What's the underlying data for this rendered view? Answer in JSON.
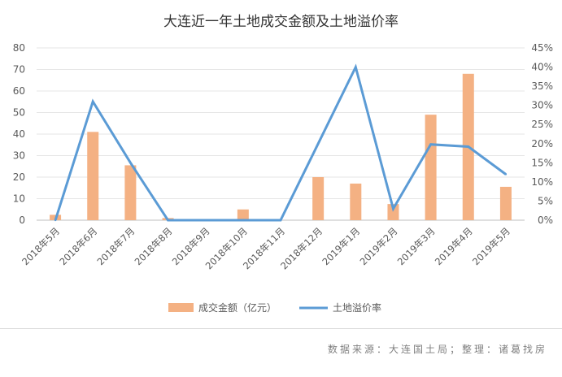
{
  "chart_data": {
    "type": "bar",
    "title": "大连近一年土地成交金额及土地溢价率",
    "categories": [
      "2018年5月",
      "2018年6月",
      "2018年7月",
      "2018年8月",
      "2018年9月",
      "2018年10月",
      "2018年11月",
      "2018年12月",
      "2019年1月",
      "2019年2月",
      "2019年3月",
      "2019年4月",
      "2019年5月"
    ],
    "y_left": {
      "ylim": [
        0,
        80
      ],
      "ticks": [
        "0",
        "10",
        "20",
        "30",
        "40",
        "50",
        "60",
        "70",
        "80"
      ]
    },
    "y_right": {
      "ylim": [
        0,
        45
      ],
      "ticks": [
        "0%",
        "5%",
        "10%",
        "15%",
        "20%",
        "25%",
        "30%",
        "35%",
        "40%",
        "45%"
      ]
    },
    "series": [
      {
        "name": "成交金额（亿元）",
        "type": "bar",
        "axis": "left",
        "color": "#F4B183",
        "values": [
          2.5,
          41,
          25.5,
          1,
          0,
          5,
          0,
          20,
          17,
          7.5,
          49,
          68,
          15.5
        ]
      },
      {
        "name": "土地溢价率",
        "type": "line",
        "axis": "right",
        "color": "#5B9BD5",
        "values": [
          0,
          31,
          15,
          0,
          0,
          0,
          0,
          20,
          40,
          3,
          19.8,
          19.2,
          12
        ]
      }
    ],
    "legend_position": "bottom",
    "grid": true
  },
  "footer": {
    "source": "数据来源：大连国土局；整理：诸葛找房"
  }
}
